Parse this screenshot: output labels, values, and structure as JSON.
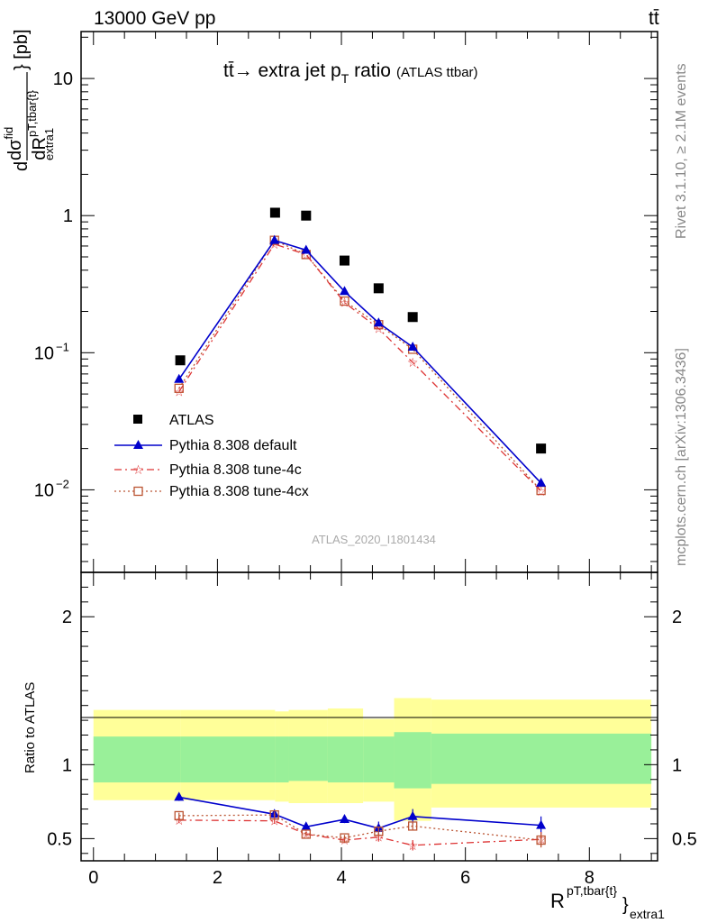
{
  "header": {
    "left": "13000 GeV pp",
    "right": "tt̄"
  },
  "side": {
    "rivet": "Rivet 3.1.10, ≥ 2.1M events",
    "mcplots": "mcplots.cern.ch [arXiv:1306.3436]"
  },
  "plot_title": {
    "main": "tt̄→ extra jet p",
    "sub": "T",
    "suffix": " ratio",
    "small": "(ATLAS ttbar)"
  },
  "analysis_id": "ATLAS_2020_I1801434",
  "colors": {
    "data": "#000000",
    "default": "#0000cc",
    "tune4c": "#dd3333",
    "tune4cx": "#bb5533",
    "band_inner": "#99f099",
    "band_outer": "#ffff99"
  },
  "chart_data": [
    {
      "type": "scatter",
      "panel": "main",
      "yscale": "log",
      "ylim": [
        0.0025,
        22
      ],
      "xlim": [
        -0.2,
        9.1
      ],
      "ylabel": {
        "d1": "d",
        "num": "dσ",
        "num_sup": "fid",
        "den": "dR",
        "den_sup": "pT,tbar{t}",
        "den_sub": "extra1",
        "unit": "} [pb]"
      },
      "yticks": [
        {
          "v": 10,
          "label": "10",
          "exp": ""
        },
        {
          "v": 1,
          "label": "1",
          "exp": ""
        },
        {
          "v": 0.1,
          "label": "10",
          "exp": "−1"
        },
        {
          "v": 0.01,
          "label": "10",
          "exp": "−2"
        }
      ],
      "legend": {
        "placement": "lower-left",
        "entries": [
          "ATLAS",
          "Pythia 8.308 default",
          "Pythia 8.308 tune-4c",
          "Pythia 8.308 tune-4cx"
        ]
      },
      "series": [
        {
          "name": "ATLAS",
          "x": [
            1.4,
            2.93,
            3.43,
            4.05,
            4.6,
            5.15,
            7.22
          ],
          "y": [
            0.088,
            1.05,
            1.0,
            0.47,
            0.295,
            0.182,
            0.02
          ]
        },
        {
          "name": "Pythia 8.308 default",
          "x": [
            1.38,
            2.92,
            3.43,
            4.05,
            4.6,
            5.15,
            7.22
          ],
          "y": [
            0.064,
            0.66,
            0.56,
            0.28,
            0.165,
            0.11,
            0.0112
          ]
        },
        {
          "name": "Pythia 8.308 tune-4c",
          "x": [
            1.38,
            2.92,
            3.43,
            4.05,
            4.6,
            5.15,
            7.22
          ],
          "y": [
            0.052,
            0.62,
            0.52,
            0.232,
            0.15,
            0.085,
            0.0098
          ]
        },
        {
          "name": "Pythia 8.308 tune-4cx",
          "x": [
            1.38,
            2.92,
            3.43,
            4.05,
            4.6,
            5.15,
            7.22
          ],
          "y": [
            0.055,
            0.66,
            0.52,
            0.238,
            0.16,
            0.106,
            0.0099
          ]
        }
      ]
    },
    {
      "type": "scatter",
      "panel": "ratio",
      "ylim": [
        0.35,
        2.3
      ],
      "xlim": [
        -0.2,
        9.1
      ],
      "ylabel": "Ratio to ATLAS",
      "xlabel": {
        "main": "R",
        "sup": "pT,tbar{t}",
        "sub": "extra1",
        "brace": "}"
      },
      "xticks": [
        0,
        2,
        4,
        6,
        8
      ],
      "yticks": [
        0.5,
        1,
        2
      ],
      "bands": [
        {
          "x0": 0.0,
          "x1": 1.4,
          "inner": [
            0.88,
            1.19
          ],
          "outer": [
            0.76,
            1.37
          ]
        },
        {
          "x0": 1.4,
          "x1": 2.93,
          "inner": [
            0.88,
            1.19
          ],
          "outer": [
            0.76,
            1.37
          ]
        },
        {
          "x0": 2.93,
          "x1": 3.15,
          "inner": [
            0.88,
            1.19
          ],
          "outer": [
            0.75,
            1.36
          ]
        },
        {
          "x0": 3.15,
          "x1": 3.78,
          "inner": [
            0.89,
            1.19
          ],
          "outer": [
            0.74,
            1.37
          ]
        },
        {
          "x0": 3.78,
          "x1": 4.35,
          "inner": [
            0.88,
            1.19
          ],
          "outer": [
            0.74,
            1.38
          ]
        },
        {
          "x0": 4.35,
          "x1": 4.85,
          "inner": [
            0.88,
            1.19
          ],
          "outer": [
            0.75,
            1.31
          ]
        },
        {
          "x0": 4.85,
          "x1": 5.45,
          "inner": [
            0.84,
            1.22
          ],
          "outer": [
            0.62,
            1.45
          ]
        },
        {
          "x0": 5.45,
          "x1": 9.0,
          "inner": [
            0.87,
            1.21
          ],
          "outer": [
            0.71,
            1.44
          ]
        }
      ],
      "series": [
        {
          "name": "Pythia 8.308 default",
          "x": [
            1.38,
            2.92,
            3.43,
            4.05,
            4.6,
            5.15,
            7.22
          ],
          "y": [
            0.78,
            0.665,
            0.58,
            0.63,
            0.57,
            0.65,
            0.59
          ],
          "err": [
            0.025,
            0.02,
            0.02,
            0.025,
            0.045,
            0.05,
            0.06
          ]
        },
        {
          "name": "Pythia 8.308 tune-4c",
          "x": [
            1.38,
            2.92,
            3.43,
            4.05,
            4.6,
            5.15,
            7.22
          ],
          "y": [
            0.625,
            0.62,
            0.53,
            0.49,
            0.51,
            0.455,
            0.495
          ],
          "err": [
            0.02,
            0.02,
            0.015,
            0.02,
            0.03,
            0.035,
            0.05
          ]
        },
        {
          "name": "Pythia 8.308 tune-4cx",
          "x": [
            1.38,
            2.92,
            3.43,
            4.05,
            4.6,
            5.15,
            7.22
          ],
          "y": [
            0.655,
            0.66,
            0.53,
            0.505,
            0.55,
            0.585,
            0.49
          ],
          "err": [
            0.02,
            0.02,
            0.015,
            0.02,
            0.03,
            0.03,
            0.05
          ]
        }
      ]
    }
  ]
}
